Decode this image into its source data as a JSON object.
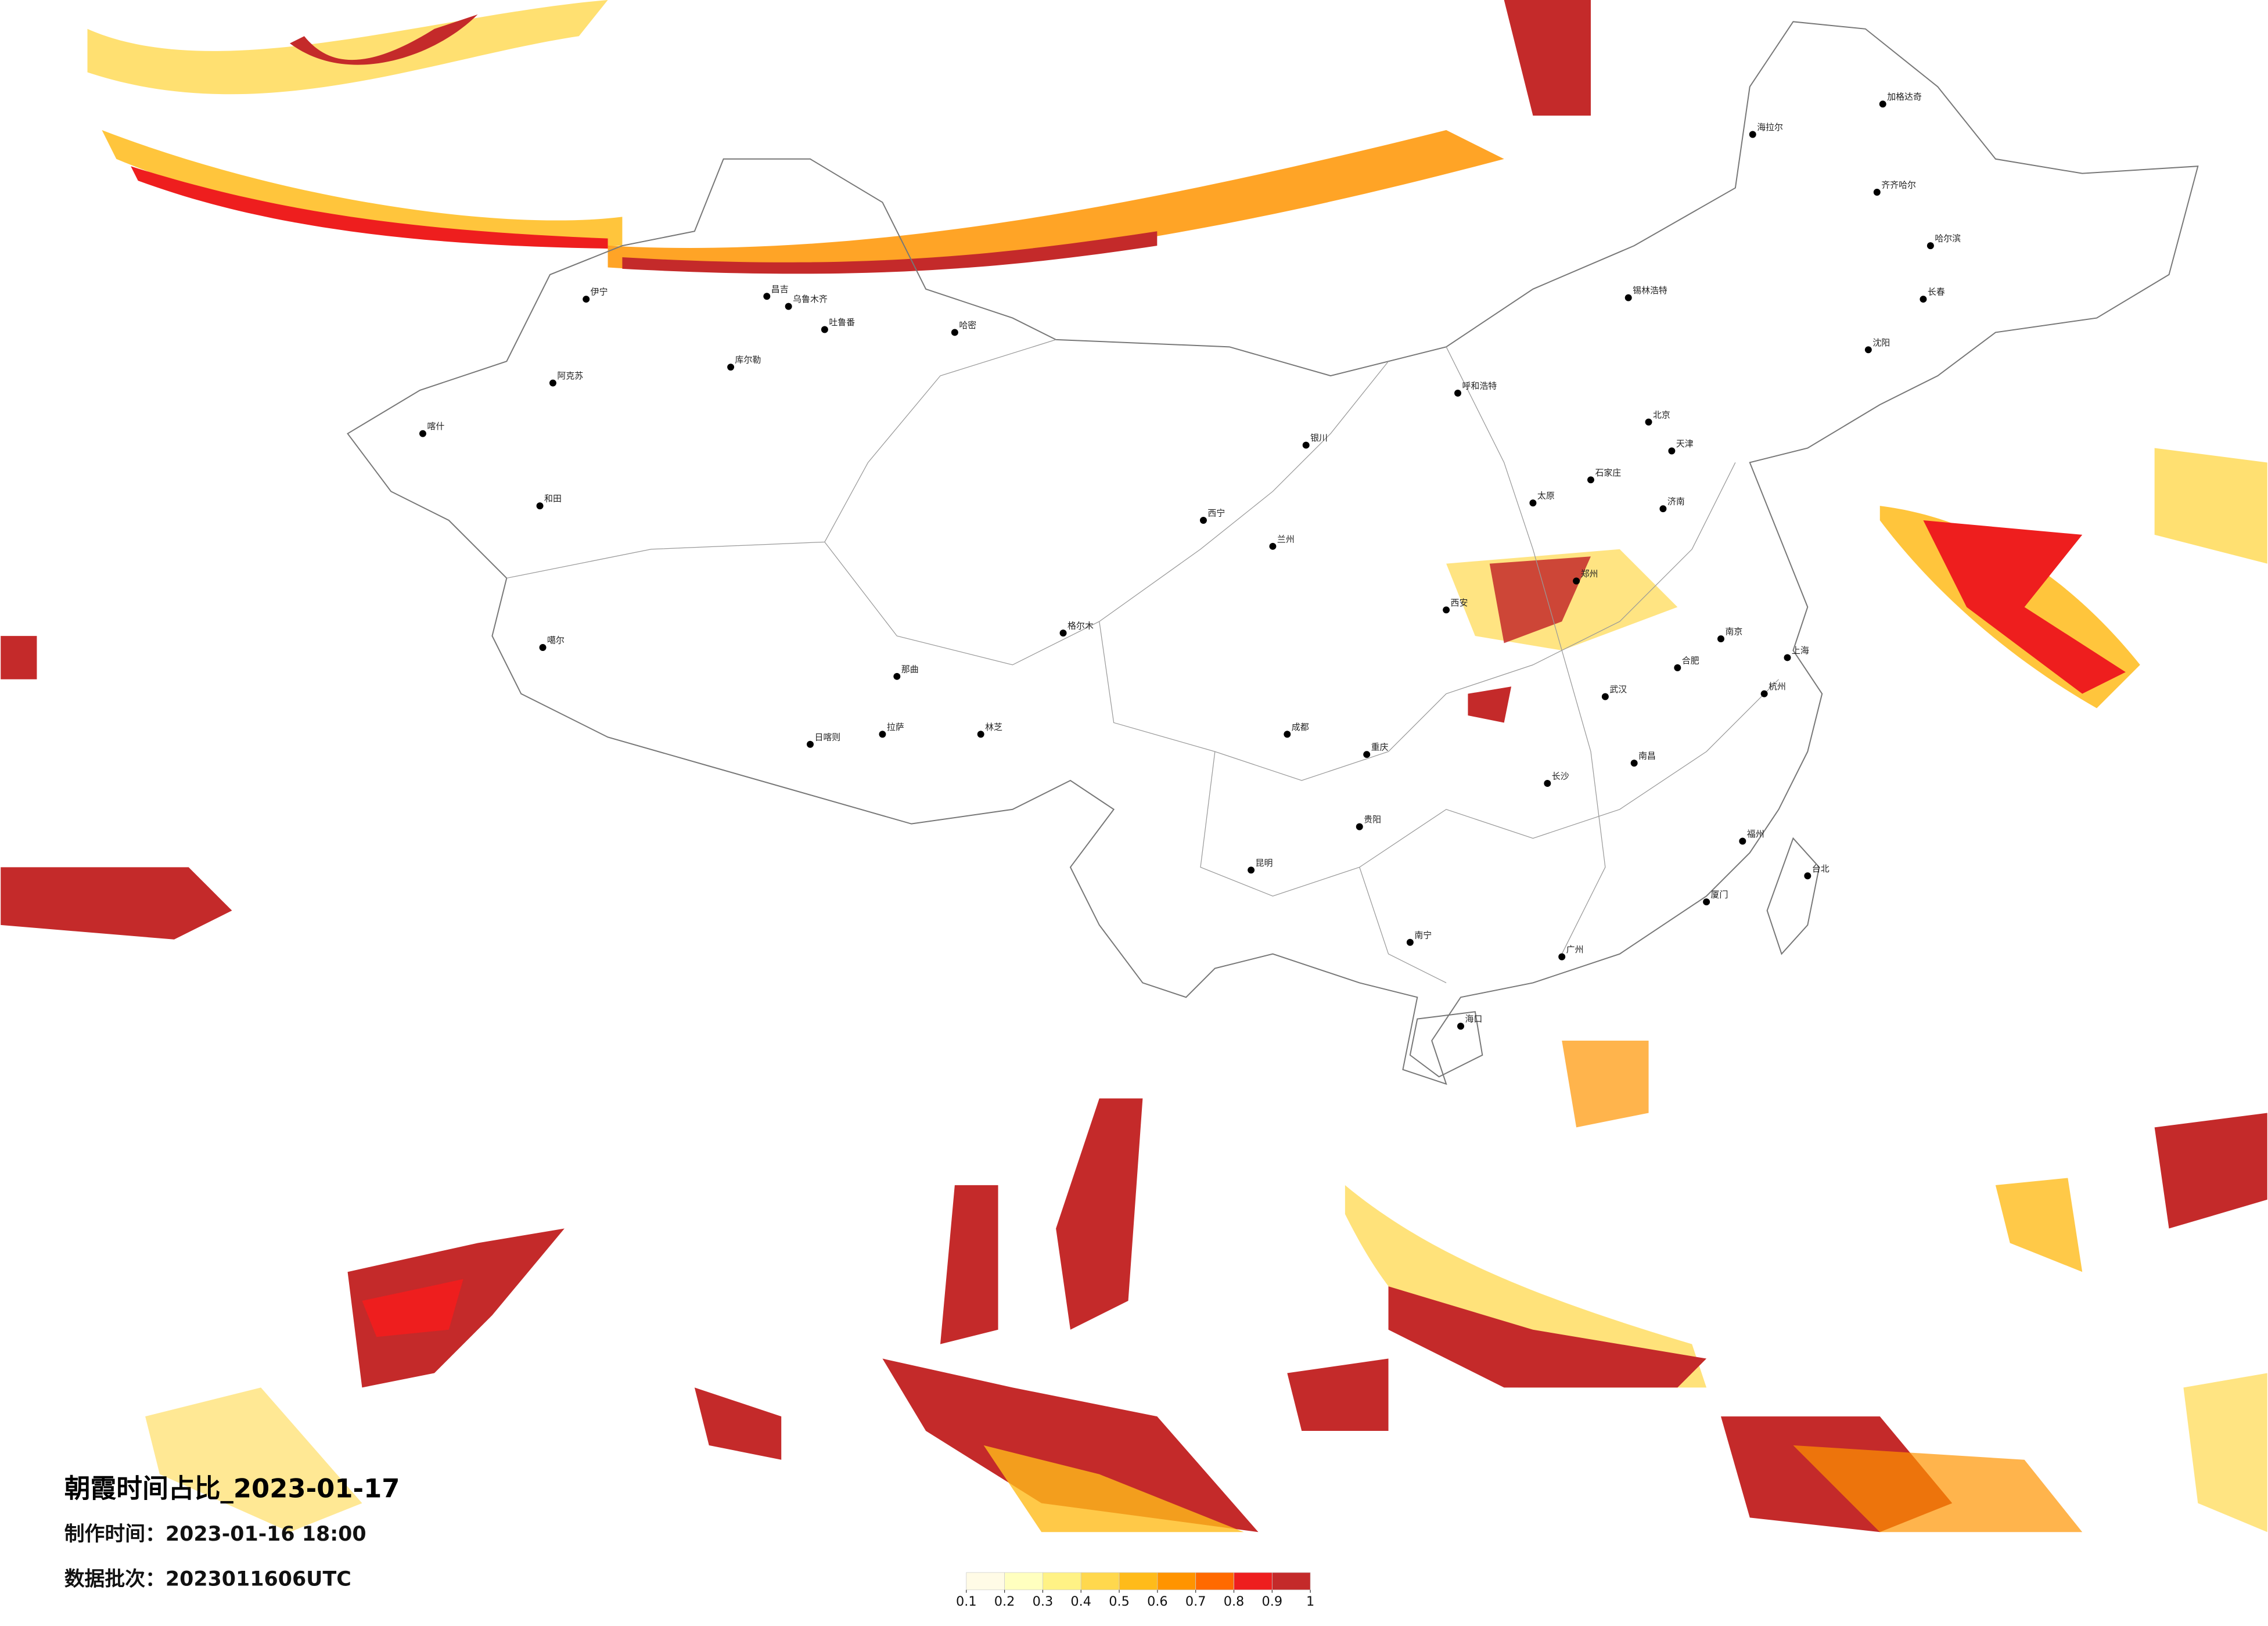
{
  "title": "朝霞时间占比_2023-01-17",
  "production_time": "制作时间：2023-01-16 18:00",
  "data_batch": "数据批次：2023011606UTC",
  "legend": {
    "colors": [
      "#fffbe6",
      "#ffffbf",
      "#fff285",
      "#ffd84d",
      "#ffbb1a",
      "#ff9400",
      "#ff6a00",
      "#ee1e1e",
      "#c42a2a"
    ],
    "ticks": [
      0.1,
      0.2,
      0.3,
      0.4,
      0.5,
      0.6,
      0.7,
      0.8,
      0.9,
      1
    ]
  },
  "cities": [
    {
      "name": "伊宁"
    },
    {
      "name": "昌吉"
    },
    {
      "name": "乌鲁木齐"
    },
    {
      "name": "吐鲁番"
    },
    {
      "name": "哈密"
    },
    {
      "name": "库尔勒"
    },
    {
      "name": "阿克苏"
    },
    {
      "name": "喀什"
    },
    {
      "name": "和田"
    },
    {
      "name": "噶尔"
    },
    {
      "name": "日喀则"
    },
    {
      "name": "拉萨"
    },
    {
      "name": "林芝"
    },
    {
      "name": "那曲"
    },
    {
      "name": "格尔木"
    },
    {
      "name": "西宁"
    },
    {
      "name": "兰州"
    },
    {
      "name": "银川"
    },
    {
      "name": "呼和浩特"
    },
    {
      "name": "北京"
    },
    {
      "name": "天津"
    },
    {
      "name": "石家庄"
    },
    {
      "name": "太原"
    },
    {
      "name": "济南"
    },
    {
      "name": "郑州"
    },
    {
      "name": "西安"
    },
    {
      "name": "成都"
    },
    {
      "name": "重庆"
    },
    {
      "name": "武汉"
    },
    {
      "name": "长沙"
    },
    {
      "name": "南京"
    },
    {
      "name": "上海"
    },
    {
      "name": "杭州"
    },
    {
      "name": "福州"
    },
    {
      "name": "广州"
    },
    {
      "name": "南宁"
    },
    {
      "name": "昆明"
    },
    {
      "name": "贵阳"
    },
    {
      "name": "海口"
    },
    {
      "name": "哈尔滨"
    },
    {
      "name": "长春"
    },
    {
      "name": "沈阳"
    },
    {
      "name": "台北"
    },
    {
      "name": "加格达奇"
    },
    {
      "name": "海拉尔"
    },
    {
      "name": "齐齐哈尔"
    },
    {
      "name": "锡林浩特"
    },
    {
      "name": "南昌"
    },
    {
      "name": "合肥"
    },
    {
      "name": "厦门"
    }
  ]
}
